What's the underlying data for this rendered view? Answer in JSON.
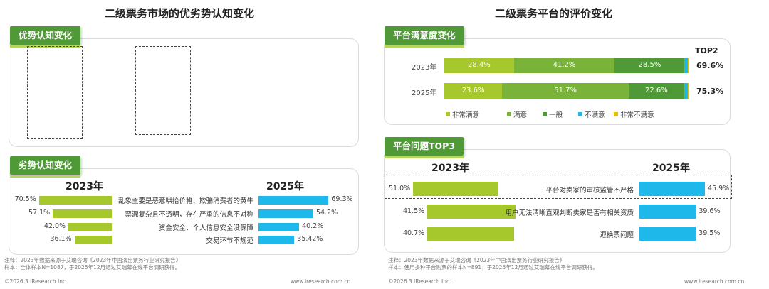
{
  "left": {
    "title": "二级票务市场的优劣势认知变化",
    "adv_tag": "优势认知变化",
    "dis_tag": "劣势认知变化",
    "note_lines": [
      "注释：2023年数据来源于艾瑞咨询《2023年中国演出票务行业研究报告》",
      "样本：全体样本N=1087，于2025年12月通过艾瑞幕在线平台调研获得。"
    ],
    "footer_left": "©2026.3 iResearch Inc.",
    "footer_right": "www.iresearch.com.cn"
  },
  "right": {
    "title": "二级票务平台的评价变化",
    "sat_tag": "平台满意度变化",
    "prob_tag": "平台问题TOP3",
    "note_lines": [
      "注释：2023年数据来源于艾瑞咨询《2023年中国演出票务行业研究报告》",
      "样本：使用多种平台购票的样本N=891；于2025年12月通过艾瑞幕在线平台调研获得。"
    ],
    "footer_left": "©2026.3 iResearch Inc.",
    "footer_right": "www.iresearch.com.cn"
  },
  "colors": {
    "very_satisfied": "#a6c82c",
    "satisfied": "#7ab33a",
    "neutral": "#4f9a36",
    "unsatisfied": "#1eb8ea",
    "very_unsatisfied": "#e8c000"
  },
  "chart_data": [
    {
      "type": "bar",
      "title": "劣势认知变化",
      "orientation": "horizontal",
      "categories": [
        "乱象主要是恶意哄抬价格、欺骗消费者的黄牛",
        "票源复杂且不透明，存在严重的信息不对称",
        "资金安全、个人信息安全没保障",
        "交易环节不规范"
      ],
      "series": [
        {
          "name": "2023年",
          "values": [
            70.5,
            57.1,
            42.0,
            36.1
          ],
          "labels": [
            "70.5%",
            "57.1%",
            "42.0%",
            "36.1%"
          ]
        },
        {
          "name": "2025年",
          "values": [
            69.3,
            54.2,
            40.2,
            35.42
          ],
          "labels": [
            "69.3%",
            "54.2%",
            "40.2%",
            "35.42%"
          ]
        }
      ]
    },
    {
      "type": "bar",
      "stacked": true,
      "title": "平台满意度变化",
      "categories": [
        "2023年",
        "2025年"
      ],
      "legend": [
        "非常满意",
        "满意",
        "一般",
        "不满意",
        "非常不满意"
      ],
      "series": [
        {
          "name": "非常满意",
          "values": [
            28.4,
            23.6
          ],
          "labels": [
            "28.4%",
            "23.6%"
          ]
        },
        {
          "name": "满意",
          "values": [
            41.2,
            51.7
          ],
          "labels": [
            "41.2%",
            "51.7%"
          ]
        },
        {
          "name": "一般",
          "values": [
            28.5,
            22.6
          ],
          "labels": [
            "28.5%",
            "22.6%"
          ]
        },
        {
          "name": "不满意",
          "values": [
            1.4,
            1.6
          ]
        },
        {
          "name": "非常不满意",
          "values": [
            0.5,
            0.5
          ]
        }
      ],
      "top2_label": "TOP2",
      "top2": [
        "69.6%",
        "75.3%"
      ]
    },
    {
      "type": "bar",
      "orientation": "horizontal",
      "title": "平台问题TOP3",
      "years": [
        "2023年",
        "2025年"
      ],
      "left": {
        "values": [
          51.0,
          41.5,
          40.7
        ],
        "labels": [
          "51.0%",
          "41.5%",
          "40.7%"
        ]
      },
      "categories": [
        "平台对卖家的审核监管不严格",
        "用户无法清晰直观判断卖家是否有相关资质",
        "退换票问题"
      ],
      "right": {
        "values": [
          45.9,
          39.6,
          39.5
        ],
        "labels": [
          "45.9%",
          "39.6%",
          "39.5%"
        ]
      }
    }
  ]
}
